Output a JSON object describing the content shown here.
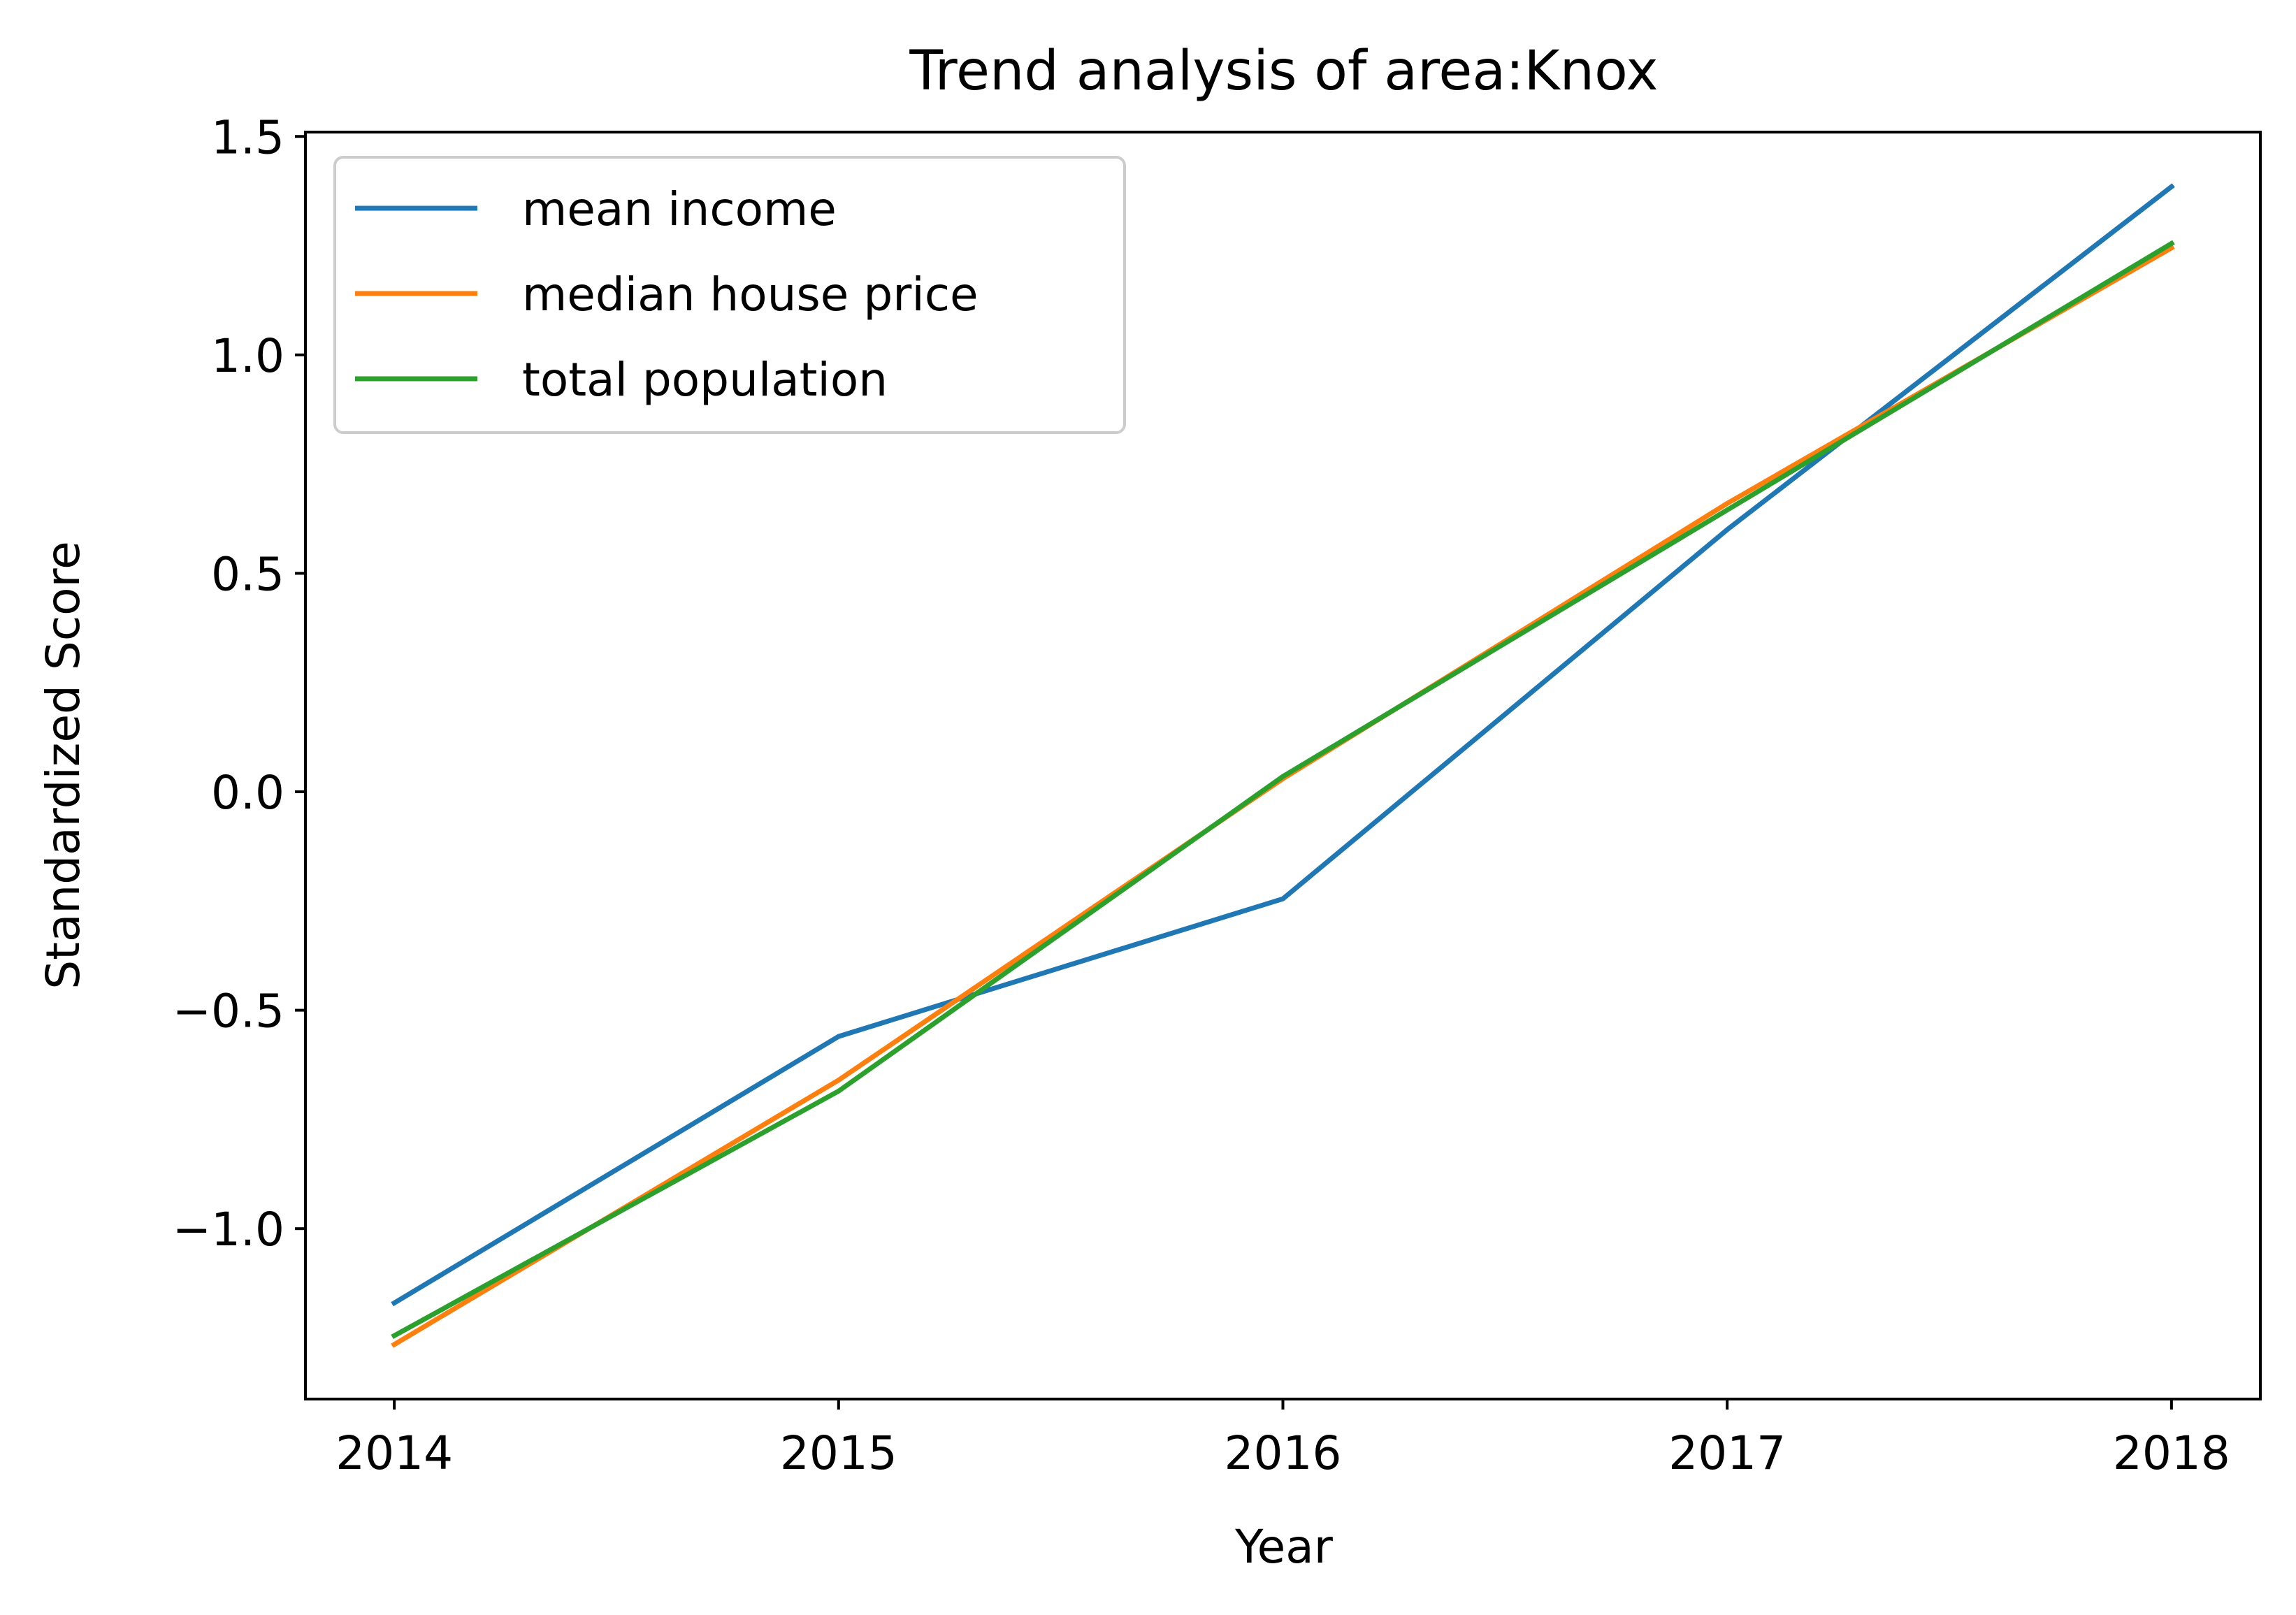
{
  "chart_data": {
    "type": "line",
    "title": "Trend analysis of area:Knox",
    "xlabel": "Year",
    "ylabel": "Standardized Score",
    "x": [
      2014,
      2015,
      2016,
      2017,
      2018
    ],
    "x_tick_labels": [
      "2014",
      "2015",
      "2016",
      "2017",
      "2018"
    ],
    "y_ticks": [
      -1.0,
      -0.5,
      0.0,
      0.5,
      1.0,
      1.5
    ],
    "y_tick_labels": [
      "−1.0",
      "−0.5",
      "0.0",
      "0.5",
      "1.0",
      "1.5"
    ],
    "xlim": [
      2013.8,
      2018.2
    ],
    "ylim": [
      -1.39,
      1.51
    ],
    "grid": false,
    "legend_position": "top-left",
    "series": [
      {
        "name": "mean income",
        "color": "#1f77b4",
        "values": [
          -1.17,
          -0.56,
          -0.245,
          0.6,
          1.385
        ]
      },
      {
        "name": "median house price",
        "color": "#ff7f0e",
        "values": [
          -1.265,
          -0.66,
          0.03,
          0.66,
          1.245
        ]
      },
      {
        "name": "total population",
        "color": "#2ca02c",
        "values": [
          -1.245,
          -0.685,
          0.035,
          0.645,
          1.255
        ]
      }
    ]
  }
}
